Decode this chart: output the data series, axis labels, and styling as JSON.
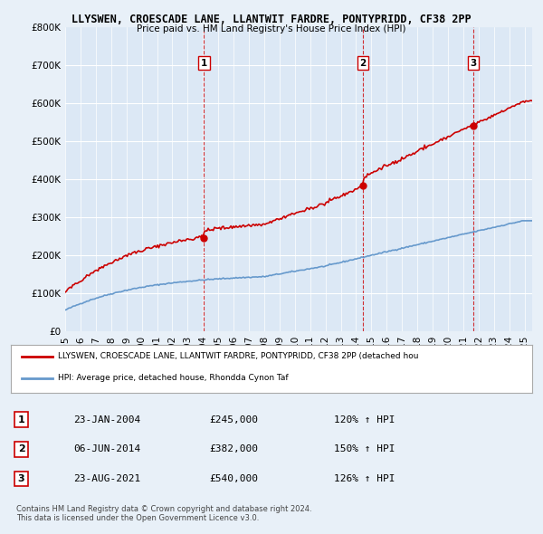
{
  "title1": "LLYSWEN, CROESCADE LANE, LLANTWIT FARDRE, PONTYPRIDD, CF38 2PP",
  "title2": "Price paid vs. HM Land Registry's House Price Index (HPI)",
  "background_color": "#e8f0f8",
  "plot_bg_color": "#dce8f5",
  "ylim": [
    0,
    800000
  ],
  "yticks": [
    0,
    100000,
    200000,
    300000,
    400000,
    500000,
    600000,
    700000,
    800000
  ],
  "xlim_start": 1995.0,
  "xlim_end": 2025.5,
  "sale_dates": [
    2004.07,
    2014.44,
    2021.65
  ],
  "sale_prices": [
    245000,
    382000,
    540000
  ],
  "sale_labels": [
    "1",
    "2",
    "3"
  ],
  "legend_red": "LLYSWEN, CROESCADE LANE, LLANTWIT FARDRE, PONTYPRIDD, CF38 2PP (detached hou",
  "legend_blue": "HPI: Average price, detached house, Rhondda Cynon Taf",
  "table_data": [
    [
      "1",
      "23-JAN-2004",
      "£245,000",
      "120% ↑ HPI"
    ],
    [
      "2",
      "06-JUN-2014",
      "£382,000",
      "150% ↑ HPI"
    ],
    [
      "3",
      "23-AUG-2021",
      "£540,000",
      "126% ↑ HPI"
    ]
  ],
  "footer": "Contains HM Land Registry data © Crown copyright and database right 2024.\nThis data is licensed under the Open Government Licence v3.0.",
  "red_line_color": "#cc0000",
  "blue_line_color": "#6699cc",
  "vline_color": "#cc0000"
}
